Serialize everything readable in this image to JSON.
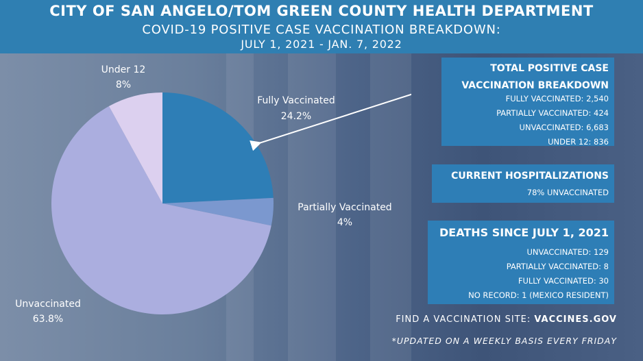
{
  "header": {
    "title": "CITY OF SAN ANGELO/TOM GREEN COUNTY HEALTH DEPARTMENT",
    "subtitle": "COVID-19 POSITIVE CASE VACCINATION BREAKDOWN:",
    "date_range": "JULY 1, 2021 - JAN. 7, 2022"
  },
  "chart_data": {
    "type": "pie",
    "slices": [
      {
        "name": "Fully Vaccinated",
        "value": 24.2,
        "label": "24.2%",
        "color": "#2e7eb6"
      },
      {
        "name": "Partially Vaccinated",
        "value": 4,
        "label": "4%",
        "color": "#7b98cf"
      },
      {
        "name": "Unvaccinated",
        "value": 63.8,
        "label": "63.8%",
        "color": "#abaedf"
      },
      {
        "name": "Under 12",
        "value": 8,
        "label": "8%",
        "color": "#dcd0ef"
      }
    ],
    "start_angle": "12 o'clock",
    "direction": "clockwise"
  },
  "panels": {
    "breakdown": {
      "title_line1": "TOTAL POSITIVE CASE",
      "title_line2": "VACCINATION BREAKDOWN",
      "lines": [
        "FULLY VACCINATED: 2,540",
        "PARTIALLY VACCINATED: 424",
        "UNVACCINATED: 6,683",
        "UNDER 12: 836"
      ]
    },
    "hospitalizations": {
      "title": "CURRENT HOSPITALIZATIONS",
      "line": "78% UNVACCINATED"
    },
    "deaths": {
      "title": "DEATHS SINCE JULY 1, 2021",
      "lines": [
        "UNVACCINATED: 129",
        "PARTIALLY VACCINATED: 8",
        "FULLY VACCINATED: 30",
        "NO RECORD: 1 (MEXICO RESIDENT)"
      ]
    }
  },
  "footer": {
    "site_prefix": "FIND A VACCINATION SITE: ",
    "site_link": "VACCINES.GOV",
    "note": "*UPDATED ON A WEEKLY BASIS EVERY FRIDAY"
  },
  "colors": {
    "header": "#2f7fb2",
    "panel": "#2e7eb6"
  }
}
